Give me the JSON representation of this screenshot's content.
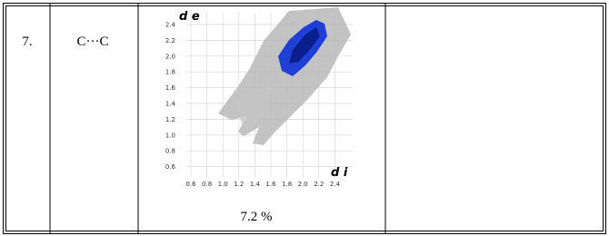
{
  "table": {
    "rows": [
      [
        "7.",
        "C···C",
        {
          "plot": {
            "y_label": "d e",
            "x_label": "d i",
            "xticks": [
              "0.6",
              "0.8",
              "1.0",
              "1.2",
              "1.4",
              "1.6",
              "1.8",
              "2.0",
              "2.2",
              "2.4"
            ],
            "yticks": [
              "2.4",
              "2.2",
              "2.0",
              "1.8",
              "1.6",
              "1.4",
              "1.2",
              "1.0",
              "0.8",
              "0.6"
            ]
          },
          "caption": "7.2 %"
        },
        ""
      ]
    ]
  }
}
